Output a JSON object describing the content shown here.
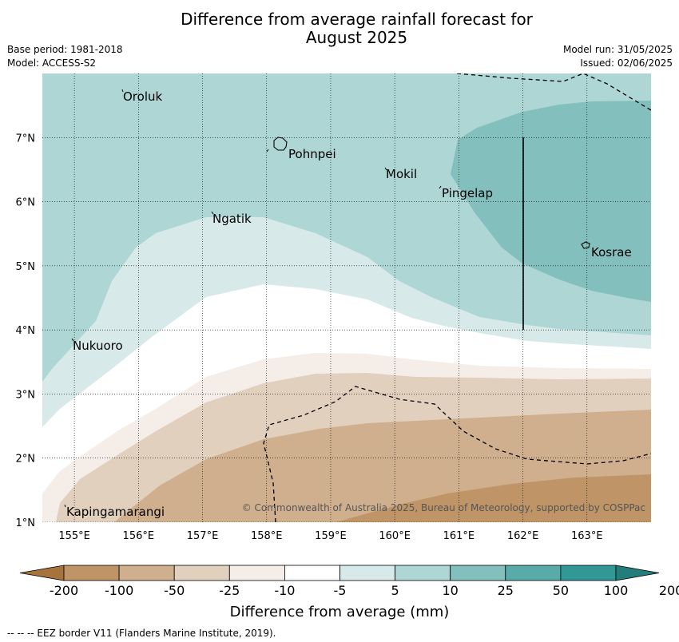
{
  "header": {
    "title_line1": "Difference from average rainfall forecast for",
    "title_line2": "August 2025",
    "base_period": "Base period: 1981-2018",
    "model": "Model: ACCESS-S2",
    "model_run": "Model run: 31/05/2025",
    "issued": "Issued: 02/06/2025"
  },
  "map": {
    "lon_range": [
      154.5,
      164.0
    ],
    "lat_range": [
      1.0,
      8.0
    ],
    "grid": true,
    "lon_ticks": [
      "155°E",
      "156°E",
      "157°E",
      "158°E",
      "159°E",
      "160°E",
      "161°E",
      "162°E",
      "163°E"
    ],
    "lat_ticks": [
      "1°N",
      "2°N",
      "3°N",
      "4°N",
      "5°N",
      "6°N",
      "7°N"
    ],
    "places": [
      "Oroluk",
      "Pohnpei",
      "Mokil",
      "Pingelap",
      "Ngatik",
      "Kosrae",
      "Nukuoro",
      "Kapingamarangi"
    ],
    "copyright": "© Commonwealth of Australia 2025, Bureau of Meteorology, supported by COSPPac"
  },
  "colorbar": {
    "labels": [
      "-200",
      "-100",
      "-50",
      "-25",
      "-10",
      "-5",
      "5",
      "10",
      "25",
      "50",
      "100",
      "200"
    ],
    "colors": [
      "#a6733d",
      "#bf9467",
      "#cfaf8e",
      "#e2d0bf",
      "#f4ede8",
      "#ffffff",
      "#d7eae9",
      "#aed6d5",
      "#82bfbd",
      "#59aba9",
      "#319896",
      "#237d7b"
    ],
    "title": "Difference from average (mm)"
  },
  "footnote": "--  --  -- EEZ border V11 (Flanders Marine Institute, 2019)."
}
